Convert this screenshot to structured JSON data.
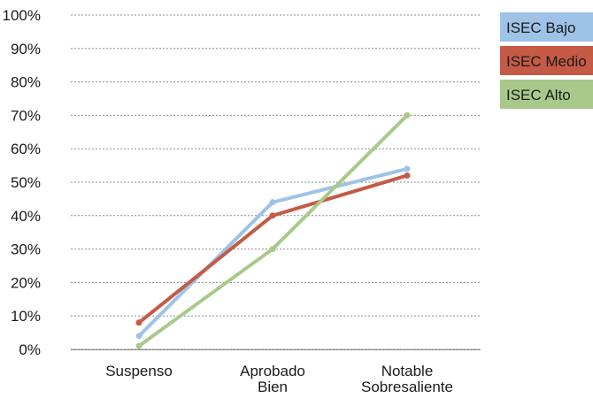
{
  "chart_data": {
    "type": "line",
    "categories": [
      [
        "Suspenso"
      ],
      [
        "Aprobado",
        "Bien"
      ],
      [
        "Notable",
        "Sobresaliente"
      ]
    ],
    "series": [
      {
        "name": "ISEC Bajo",
        "color": "#9dc3e6",
        "values": [
          4,
          44,
          54
        ]
      },
      {
        "name": "ISEC Medio",
        "color": "#c55a45",
        "values": [
          8,
          40,
          52
        ]
      },
      {
        "name": "ISEC Alto",
        "color": "#a9c98b",
        "values": [
          1,
          30,
          70
        ]
      }
    ],
    "ylim": [
      0,
      100
    ],
    "yticks": [
      0,
      10,
      20,
      30,
      40,
      50,
      60,
      70,
      80,
      90,
      100
    ],
    "ytick_suffix": "%",
    "grid": "horizontal-dashed",
    "legend_position": "right"
  }
}
